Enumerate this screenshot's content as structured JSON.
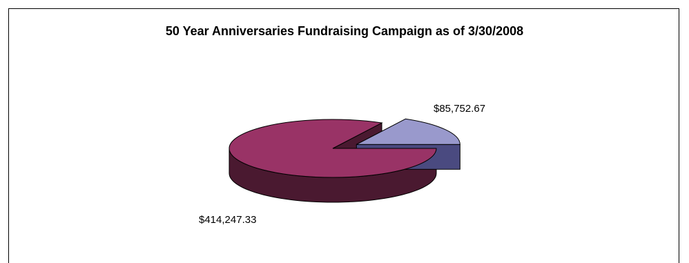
{
  "chart_data": {
    "type": "pie",
    "title": "50 Year Anniversaries Fundraising Campaign as of 3/30/2008",
    "three_d": true,
    "exploded_slice": 1,
    "slices": [
      {
        "value": 414247.33,
        "label": "$414,247.33",
        "top_color": "#993366",
        "side_color": "#4a1930"
      },
      {
        "value": 85752.67,
        "label": "$85,752.67",
        "top_color": "#9999cc",
        "side_color": "#4a4a80"
      }
    ],
    "legend": "none"
  }
}
